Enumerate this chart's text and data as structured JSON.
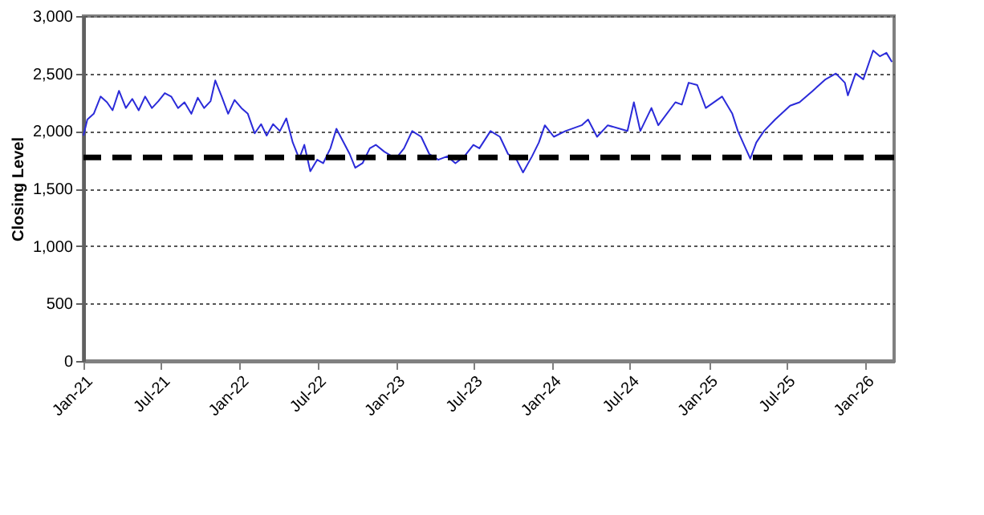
{
  "chart_data": {
    "type": "line",
    "ylabel": "Closing Level",
    "xlim": [
      "2021-01-01",
      "2026-03-10"
    ],
    "ylim": [
      0,
      3000
    ],
    "yticks": [
      {
        "value": 0,
        "label": "0"
      },
      {
        "value": 500,
        "label": "500"
      },
      {
        "value": 1000,
        "label": "1,000"
      },
      {
        "value": 1500,
        "label": "1,500"
      },
      {
        "value": 2000,
        "label": "2,000"
      },
      {
        "value": 2500,
        "label": "2,500"
      },
      {
        "value": 3000,
        "label": "3,000"
      }
    ],
    "xticks": [
      {
        "value": "2021-01-01",
        "label": "Jan-21"
      },
      {
        "value": "2021-07-01",
        "label": "Jul-21"
      },
      {
        "value": "2022-01-01",
        "label": "Jan-22"
      },
      {
        "value": "2022-07-01",
        "label": "Jul-22"
      },
      {
        "value": "2023-01-01",
        "label": "Jan-23"
      },
      {
        "value": "2023-07-01",
        "label": "Jul-23"
      },
      {
        "value": "2024-01-01",
        "label": "Jan-24"
      },
      {
        "value": "2024-07-01",
        "label": "Jul-24"
      },
      {
        "value": "2025-01-01",
        "label": "Jan-25"
      },
      {
        "value": "2025-07-01",
        "label": "Jul-25"
      },
      {
        "value": "2026-01-01",
        "label": "Jan-26"
      }
    ],
    "grid": "y",
    "marker": "none",
    "line_style": "solid",
    "ref_lines": [
      {
        "axis": "y",
        "value": 1770,
        "color": "#000000",
        "line_style": "dashed"
      }
    ],
    "x": [
      "2021-01-01",
      "2021-01-10",
      "2021-01-25",
      "2021-02-10",
      "2021-02-25",
      "2021-03-10",
      "2021-03-25",
      "2021-04-10",
      "2021-04-25",
      "2021-05-10",
      "2021-05-25",
      "2021-06-10",
      "2021-06-25",
      "2021-07-10",
      "2021-07-25",
      "2021-08-10",
      "2021-08-25",
      "2021-09-10",
      "2021-09-25",
      "2021-10-10",
      "2021-10-25",
      "2021-11-05",
      "2021-11-20",
      "2021-12-05",
      "2021-12-20",
      "2022-01-05",
      "2022-01-20",
      "2022-02-05",
      "2022-02-20",
      "2022-03-05",
      "2022-03-20",
      "2022-04-05",
      "2022-04-20",
      "2022-05-05",
      "2022-05-20",
      "2022-06-01",
      "2022-06-15",
      "2022-07-01",
      "2022-07-15",
      "2022-08-01",
      "2022-08-15",
      "2022-09-01",
      "2022-09-15",
      "2022-09-28",
      "2022-10-15",
      "2022-11-01",
      "2022-11-15",
      "2022-12-05",
      "2023-01-01",
      "2023-01-20",
      "2023-02-08",
      "2023-03-01",
      "2023-03-20",
      "2023-04-10",
      "2023-05-01",
      "2023-05-20",
      "2023-06-10",
      "2023-07-01",
      "2023-07-15",
      "2023-08-10",
      "2023-09-01",
      "2023-09-20",
      "2023-10-10",
      "2023-10-25",
      "2023-11-15",
      "2023-12-01",
      "2023-12-15",
      "2024-01-05",
      "2024-02-01",
      "2024-03-10",
      "2024-03-25",
      "2024-04-15",
      "2024-05-10",
      "2024-06-25",
      "2024-07-10",
      "2024-07-25",
      "2024-08-20",
      "2024-09-05",
      "2024-10-15",
      "2024-10-30",
      "2024-11-15",
      "2024-12-05",
      "2024-12-25",
      "2025-02-01",
      "2025-02-25",
      "2025-03-10",
      "2025-03-28",
      "2025-04-08",
      "2025-04-22",
      "2025-05-10",
      "2025-06-05",
      "2025-07-10",
      "2025-08-01",
      "2025-09-01",
      "2025-10-01",
      "2025-10-25",
      "2025-11-15",
      "2025-11-22",
      "2025-12-10",
      "2025-12-28",
      "2026-01-20",
      "2026-02-05",
      "2026-02-20",
      "2026-03-05"
    ],
    "series": [
      {
        "color": "#2b2bd9",
        "values": [
          1960,
          2100,
          2150,
          2300,
          2250,
          2180,
          2350,
          2200,
          2280,
          2180,
          2300,
          2200,
          2260,
          2330,
          2300,
          2200,
          2250,
          2150,
          2290,
          2200,
          2260,
          2440,
          2300,
          2150,
          2270,
          2200,
          2150,
          1980,
          2060,
          1960,
          2060,
          2000,
          2110,
          1900,
          1760,
          1880,
          1650,
          1750,
          1720,
          1850,
          2020,
          1900,
          1800,
          1680,
          1720,
          1850,
          1880,
          1820,
          1760,
          1850,
          2000,
          1950,
          1800,
          1750,
          1780,
          1720,
          1780,
          1880,
          1850,
          2000,
          1950,
          1800,
          1750,
          1640,
          1780,
          1900,
          2050,
          1950,
          2000,
          2050,
          2100,
          1950,
          2050,
          2000,
          2250,
          2000,
          2200,
          2050,
          2250,
          2230,
          2420,
          2400,
          2200,
          2300,
          2150,
          2000,
          1850,
          1760,
          1900,
          2000,
          2100,
          2220,
          2250,
          2350,
          2450,
          2500,
          2420,
          2310,
          2500,
          2450,
          2700,
          2650,
          2680,
          2600
        ]
      }
    ]
  }
}
